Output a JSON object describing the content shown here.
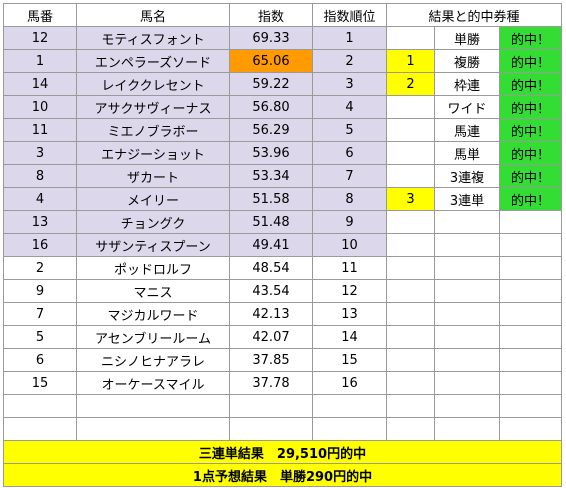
{
  "headers": {
    "horse_no": "馬番",
    "horse_name": "馬名",
    "score": "指数",
    "rank": "指数順位",
    "results": "結果と的中券種"
  },
  "rows": [
    {
      "no": "12",
      "name": "モティスフォント",
      "score": "69.33",
      "rank": "1",
      "result_pos": "",
      "bet_type": "単勝",
      "hit": "的中！"
    },
    {
      "no": "1",
      "name": "エンペラーズソード",
      "score": "65.06",
      "rank": "2",
      "result_pos": "1",
      "bet_type": "複勝",
      "hit": "的中！"
    },
    {
      "no": "14",
      "name": "レイククレセント",
      "score": "59.22",
      "rank": "3",
      "result_pos": "2",
      "bet_type": "枠連",
      "hit": "的中！"
    },
    {
      "no": "10",
      "name": "アサクサヴィーナス",
      "score": "56.80",
      "rank": "4",
      "result_pos": "",
      "bet_type": "ワイド",
      "hit": "的中！"
    },
    {
      "no": "11",
      "name": "ミエノブラボー",
      "score": "56.29",
      "rank": "5",
      "result_pos": "",
      "bet_type": "馬連",
      "hit": "的中！"
    },
    {
      "no": "3",
      "name": "エナジーショット",
      "score": "53.96",
      "rank": "6",
      "result_pos": "",
      "bet_type": "馬単",
      "hit": "的中！"
    },
    {
      "no": "8",
      "name": "ザカート",
      "score": "53.34",
      "rank": "7",
      "result_pos": "",
      "bet_type": "3連複",
      "hit": "的中！"
    },
    {
      "no": "4",
      "name": "メイリー",
      "score": "51.58",
      "rank": "8",
      "result_pos": "3",
      "bet_type": "3連単",
      "hit": "的中！"
    },
    {
      "no": "13",
      "name": "チョングク",
      "score": "51.48",
      "rank": "9",
      "result_pos": "",
      "bet_type": "",
      "hit": ""
    },
    {
      "no": "16",
      "name": "サザンティスプーン",
      "score": "49.41",
      "rank": "10",
      "result_pos": "",
      "bet_type": "",
      "hit": ""
    },
    {
      "no": "2",
      "name": "ポッドロルフ",
      "score": "48.54",
      "rank": "11",
      "result_pos": "",
      "bet_type": "",
      "hit": ""
    },
    {
      "no": "9",
      "name": "マニス",
      "score": "43.54",
      "rank": "12",
      "result_pos": "",
      "bet_type": "",
      "hit": ""
    },
    {
      "no": "7",
      "name": "マジカルワード",
      "score": "42.13",
      "rank": "13",
      "result_pos": "",
      "bet_type": "",
      "hit": ""
    },
    {
      "no": "5",
      "name": "アセンブリールーム",
      "score": "42.07",
      "rank": "14",
      "result_pos": "",
      "bet_type": "",
      "hit": ""
    },
    {
      "no": "6",
      "name": "ニシノヒナアラレ",
      "score": "37.85",
      "rank": "15",
      "result_pos": "",
      "bet_type": "",
      "hit": ""
    },
    {
      "no": "15",
      "name": "オーケースマイル",
      "score": "37.78",
      "rank": "16",
      "result_pos": "",
      "bet_type": "",
      "hit": ""
    },
    {
      "no": "",
      "name": "",
      "score": "",
      "rank": "",
      "result_pos": "",
      "bet_type": "",
      "hit": ""
    },
    {
      "no": "",
      "name": "",
      "score": "",
      "rank": "",
      "result_pos": "",
      "bet_type": "",
      "hit": ""
    }
  ],
  "highlight_color": "#dcd7ea",
  "top_score_color": "#ff9a00",
  "result_color": "#ffff00",
  "hit_color": "#33dd33",
  "footer": {
    "trifecta_result": "三連単結果　29,510円的中",
    "one_point_result": "1点予想結果　単勝290円的中"
  }
}
